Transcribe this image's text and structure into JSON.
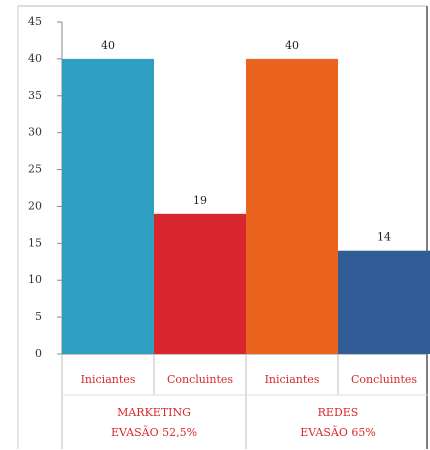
{
  "chart_data": {
    "type": "bar",
    "ylim": [
      0,
      45
    ],
    "yticks": [
      0,
      5,
      10,
      15,
      20,
      25,
      30,
      35,
      40,
      45
    ],
    "grid": false,
    "legend": "none",
    "groups": [
      {
        "name_line1": "MARKETING",
        "name_line2": "EVASÃO 52,5%",
        "bars": [
          {
            "category": "Iniciantes",
            "value": 40,
            "label": "40",
            "color": "#2e9fc0"
          },
          {
            "category": "Concluintes",
            "value": 19,
            "label": "19",
            "color": "#d9252e"
          }
        ]
      },
      {
        "name_line1": "REDES",
        "name_line2": "EVASÃO 65%",
        "bars": [
          {
            "category": "Iniciantes",
            "value": 40,
            "label": "40",
            "color": "#ea6420"
          },
          {
            "category": "Concluintes",
            "value": 14,
            "label": "14",
            "color": "#315d96"
          }
        ]
      }
    ]
  }
}
